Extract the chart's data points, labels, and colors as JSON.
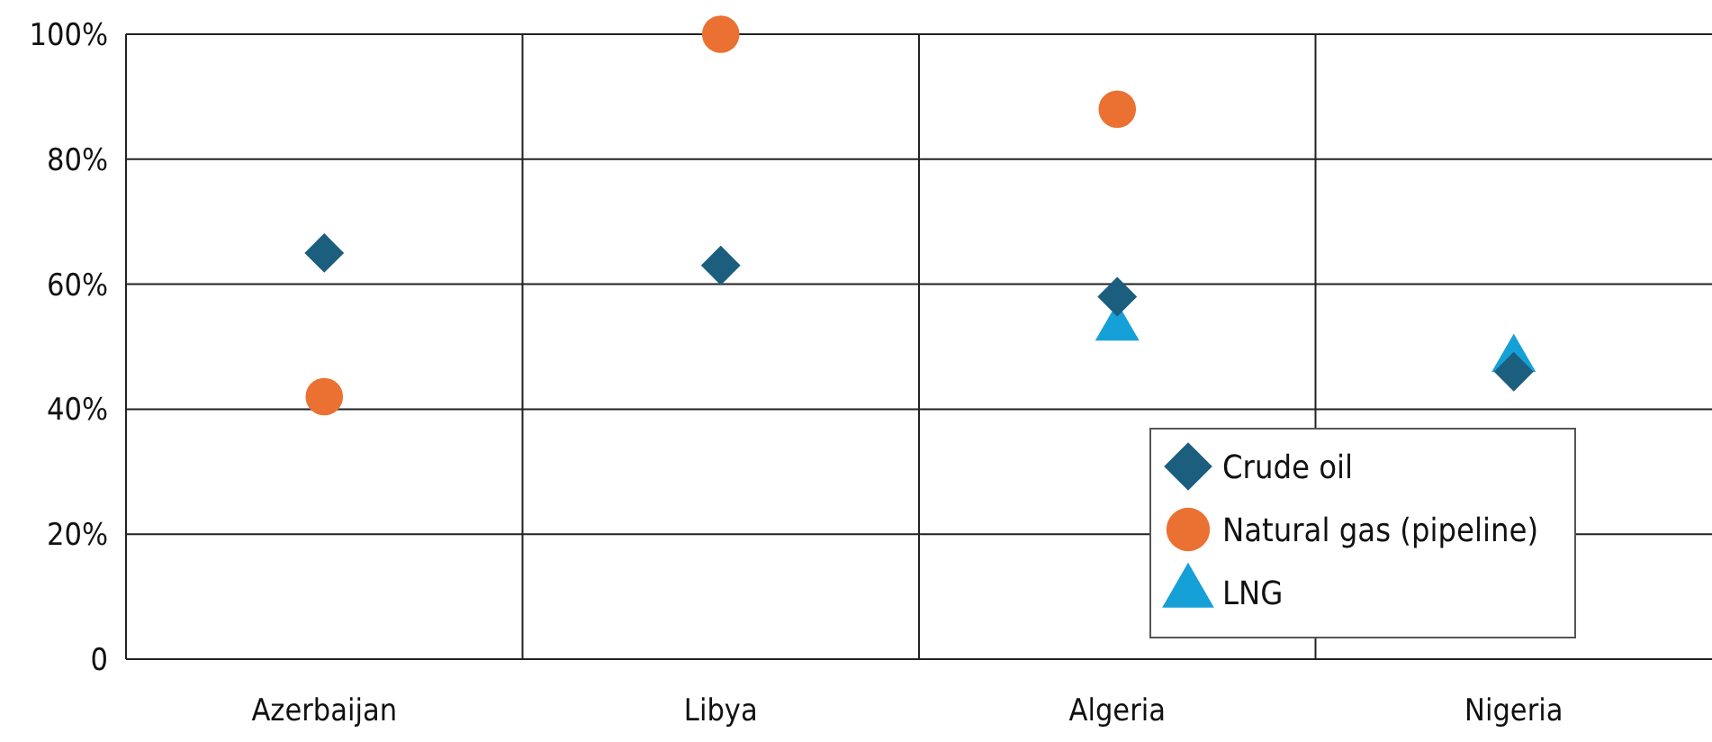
{
  "chart_data": {
    "type": "scatter",
    "categories": [
      "Azerbaijan",
      "Libya",
      "Algeria",
      "Nigeria"
    ],
    "series": [
      {
        "name": "Crude oil",
        "color": "#1b5e7e",
        "marker": "diamond",
        "x": [
          "Azerbaijan",
          "Libya",
          "Algeria",
          "Nigeria"
        ],
        "values": [
          65,
          63,
          58,
          46
        ]
      },
      {
        "name": "Natural gas (pipeline)",
        "color": "#eb7132",
        "marker": "circle",
        "x": [
          "Azerbaijan",
          "Libya",
          "Algeria"
        ],
        "values": [
          42,
          100,
          88
        ]
      },
      {
        "name": "LNG",
        "color": "#16a0d8",
        "marker": "triangle",
        "x": [
          "Algeria",
          "Nigeria"
        ],
        "values": [
          53,
          48
        ]
      }
    ],
    "ylim": [
      0,
      100
    ],
    "yticks": [
      0,
      {
        "value": 20,
        "label": "20%"
      },
      {
        "value": 40,
        "label": "40%"
      },
      {
        "value": 60,
        "label": "60%"
      },
      {
        "value": 80,
        "label": "80%"
      },
      {
        "value": 100,
        "label": "100%"
      }
    ],
    "grid": true,
    "legend": "bottom right"
  }
}
